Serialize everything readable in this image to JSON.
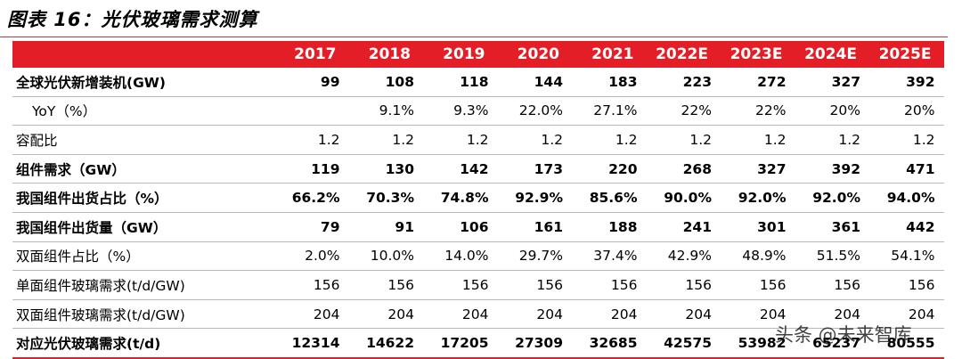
{
  "title": "图表 16：光伏玻璃需求测算",
  "header": {
    "label": "",
    "years": [
      "2017",
      "2018",
      "2019",
      "2020",
      "2021",
      "2022E",
      "2023E",
      "2024E",
      "2025E"
    ]
  },
  "rows": [
    {
      "label": "全球光伏新增装机(GW)",
      "values": [
        "99",
        "108",
        "118",
        "144",
        "183",
        "223",
        "272",
        "327",
        "392"
      ]
    },
    {
      "label": "YoY（%）",
      "values": [
        "",
        "9.1%",
        "9.3%",
        "22.0%",
        "27.1%",
        "22%",
        "22%",
        "20%",
        "20%"
      ]
    },
    {
      "label": "容配比",
      "values": [
        "1.2",
        "1.2",
        "1.2",
        "1.2",
        "1.2",
        "1.2",
        "1.2",
        "1.2",
        "1.2"
      ]
    },
    {
      "label": "组件需求（GW）",
      "values": [
        "119",
        "130",
        "142",
        "173",
        "220",
        "268",
        "327",
        "392",
        "471"
      ]
    },
    {
      "label": "我国组件出货占比（%）",
      "values": [
        "66.2%",
        "70.3%",
        "74.8%",
        "92.9%",
        "85.6%",
        "90.0%",
        "92.0%",
        "92.0%",
        "94.0%"
      ]
    },
    {
      "label": "我国组件出货量（GW）",
      "values": [
        "79",
        "91",
        "106",
        "161",
        "188",
        "241",
        "301",
        "361",
        "442"
      ]
    },
    {
      "label": "双面组件占比（%）",
      "values": [
        "2.0%",
        "10.0%",
        "14.0%",
        "29.7%",
        "37.4%",
        "42.9%",
        "48.9%",
        "51.5%",
        "54.1%"
      ]
    },
    {
      "label": "单面组件玻璃需求(t/d/GW)",
      "values": [
        "156",
        "156",
        "156",
        "156",
        "156",
        "156",
        "156",
        "156",
        "156"
      ]
    },
    {
      "label": "双面组件玻璃需求(t/d/GW)",
      "values": [
        "204",
        "204",
        "204",
        "204",
        "204",
        "204",
        "204",
        "204",
        "204"
      ]
    },
    {
      "label": "对应光伏玻璃需求(t/d)",
      "values": [
        "12314",
        "14622",
        "17205",
        "27309",
        "32685",
        "42575",
        "53982",
        "65237",
        "80555"
      ]
    }
  ],
  "watermark": "头条 @未来智库"
}
